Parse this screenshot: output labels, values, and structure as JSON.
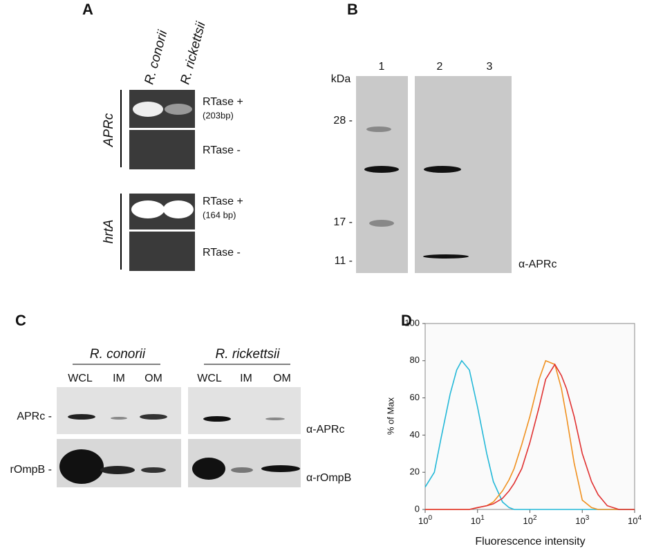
{
  "panel_a": {
    "label": "A",
    "lanes": [
      "R. conorii",
      "R. rickettsii"
    ],
    "groups": [
      {
        "gene": "APRc",
        "rows": [
          {
            "text": "RTase +",
            "size": "(203bp)"
          },
          {
            "text": "RTase -"
          }
        ]
      },
      {
        "gene": "hrtA",
        "rows": [
          {
            "text": "RTase +",
            "size": "(164 bp)"
          },
          {
            "text": "RTase -"
          }
        ]
      }
    ]
  },
  "panel_b": {
    "label": "B",
    "unit": "kDa",
    "lanes": [
      "1",
      "2",
      "3"
    ],
    "markers": [
      "28 -",
      "17 -",
      "11 -"
    ],
    "antibody": "α-APRc"
  },
  "panel_c": {
    "label": "C",
    "strains": [
      {
        "name": "R. conorii",
        "lanes": [
          "WCL",
          "IM",
          "OM"
        ]
      },
      {
        "name": "R. rickettsii",
        "lanes": [
          "WCL",
          "IM",
          "OM"
        ]
      }
    ],
    "rows": [
      {
        "protein": "APRc -",
        "antibody": "α-APRc"
      },
      {
        "protein": "rOmpB -",
        "antibody": "α-rOmpB"
      }
    ]
  },
  "chart_data": {
    "type": "line",
    "label": "D",
    "xlabel": "Fluorescence intensity",
    "ylabel": "% of Max",
    "log_x": true,
    "grid": false,
    "xlim": [
      1,
      10000
    ],
    "ylim": [
      0,
      100
    ],
    "xticks": [
      {
        "value": 1,
        "label": "10^0"
      },
      {
        "value": 10,
        "label": "10^1"
      },
      {
        "value": 100,
        "label": "10^2"
      },
      {
        "value": 1000,
        "label": "10^3"
      },
      {
        "value": 10000,
        "label": "10^4"
      }
    ],
    "yticks": [
      0,
      20,
      40,
      60,
      80,
      100
    ],
    "x": [
      1,
      1.5,
      2,
      3,
      4,
      5,
      7,
      10,
      15,
      20,
      30,
      40,
      50,
      70,
      100,
      150,
      200,
      300,
      400,
      500,
      700,
      1000,
      1500,
      2000,
      3000,
      5000,
      10000
    ],
    "series": [
      {
        "color": "#22b8d8",
        "values": [
          12,
          20,
          38,
          62,
          75,
          80,
          75,
          55,
          30,
          15,
          4,
          1,
          0,
          0,
          0,
          0,
          0,
          0,
          0,
          0,
          0,
          0,
          0,
          0,
          0,
          0,
          0
        ]
      },
      {
        "color": "#f0901e",
        "values": [
          0,
          0,
          0,
          0,
          0,
          0,
          0,
          1,
          2,
          4,
          10,
          16,
          22,
          35,
          50,
          70,
          80,
          78,
          65,
          50,
          25,
          5,
          1,
          0,
          0,
          0,
          0
        ]
      },
      {
        "color": "#e03030",
        "values": [
          0,
          0,
          0,
          0,
          0,
          0,
          0,
          1,
          2,
          3,
          6,
          10,
          14,
          22,
          36,
          55,
          70,
          78,
          72,
          65,
          50,
          30,
          15,
          8,
          2,
          0,
          0
        ]
      }
    ]
  }
}
